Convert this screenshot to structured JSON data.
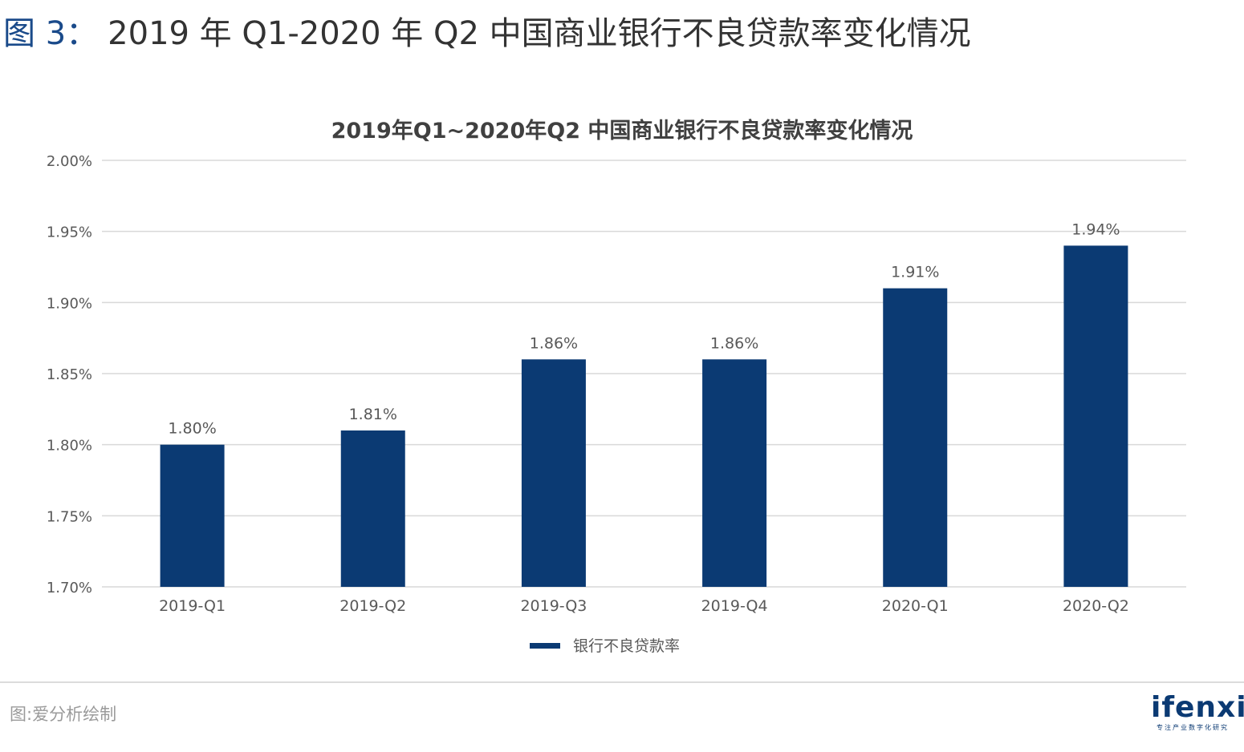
{
  "figure": {
    "label": "图 3",
    "colon": "：",
    "title": "2019 年 Q1-2020 年 Q2 中国商业银行不良贷款率变化情况"
  },
  "chart_data": {
    "type": "bar",
    "title": "2019年Q1~2020年Q2 中国商业银行不良贷款率变化情况",
    "categories": [
      "2019-Q1",
      "2019-Q2",
      "2019-Q3",
      "2019-Q4",
      "2020-Q1",
      "2020-Q2"
    ],
    "series": [
      {
        "name": "银行不良贷款率",
        "values": [
          1.8,
          1.81,
          1.86,
          1.86,
          1.91,
          1.94
        ],
        "labels": [
          "1.80%",
          "1.81%",
          "1.86%",
          "1.86%",
          "1.91%",
          "1.94%"
        ],
        "color": "#0b3a73"
      }
    ],
    "ylim": [
      1.7,
      2.0
    ],
    "yticks": [
      1.7,
      1.75,
      1.8,
      1.85,
      1.9,
      1.95,
      2.0
    ],
    "ytick_labels": [
      "1.70%",
      "1.75%",
      "1.80%",
      "1.85%",
      "1.90%",
      "1.95%",
      "2.00%"
    ],
    "grid": true,
    "legend": "bottom-center",
    "colors": {
      "grid": "#d9d9d9",
      "axis_text": "#595959",
      "title_text": "#404040"
    }
  },
  "footer": {
    "source": "图:爱分析绘制",
    "logo": "ifenxi",
    "logo_sub": "专注产业数字化研究"
  }
}
